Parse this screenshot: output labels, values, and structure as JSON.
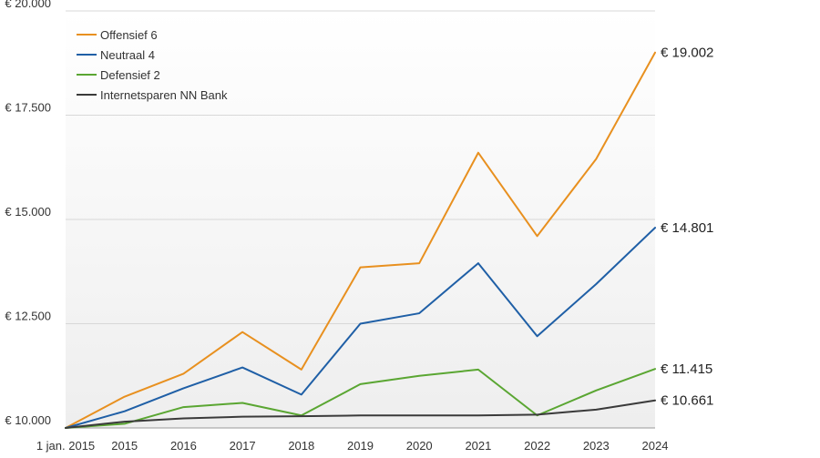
{
  "chart_data": {
    "type": "line",
    "title": "",
    "xlabel": "",
    "ylabel": "",
    "categories": [
      "1 jan. 2015",
      "2015",
      "2016",
      "2017",
      "2018",
      "2019",
      "2020",
      "2021",
      "2022",
      "2023",
      "2024"
    ],
    "ylim": [
      10000,
      20000
    ],
    "yticks": [
      10000,
      12500,
      15000,
      17500,
      20000
    ],
    "ytick_labels": [
      "€ 10.000",
      "€ 12.500",
      "€ 15.000",
      "€ 17.500",
      "€ 20.000"
    ],
    "legend_position": "top-left",
    "series": [
      {
        "name": "Offensief 6",
        "color": "#e8901f",
        "values": [
          10000,
          10750,
          11300,
          12300,
          11400,
          13850,
          13950,
          16600,
          14600,
          16450,
          19002
        ],
        "end_label": "€ 19.002"
      },
      {
        "name": "Neutraal 4",
        "color": "#1f5fa6",
        "values": [
          10000,
          10400,
          10950,
          11450,
          10800,
          12500,
          12750,
          13950,
          12200,
          13450,
          14801
        ],
        "end_label": "€ 14.801"
      },
      {
        "name": "Defensief 2",
        "color": "#5aa632",
        "values": [
          10000,
          10100,
          10500,
          10600,
          10300,
          11050,
          11250,
          11400,
          10300,
          10900,
          11415
        ],
        "end_label": "€ 11.415"
      },
      {
        "name": "Internetsparen NN Bank",
        "color": "#3a3a3a",
        "values": [
          10000,
          10150,
          10230,
          10270,
          10280,
          10300,
          10300,
          10300,
          10320,
          10440,
          10661
        ],
        "end_label": "€ 10.661"
      }
    ]
  }
}
